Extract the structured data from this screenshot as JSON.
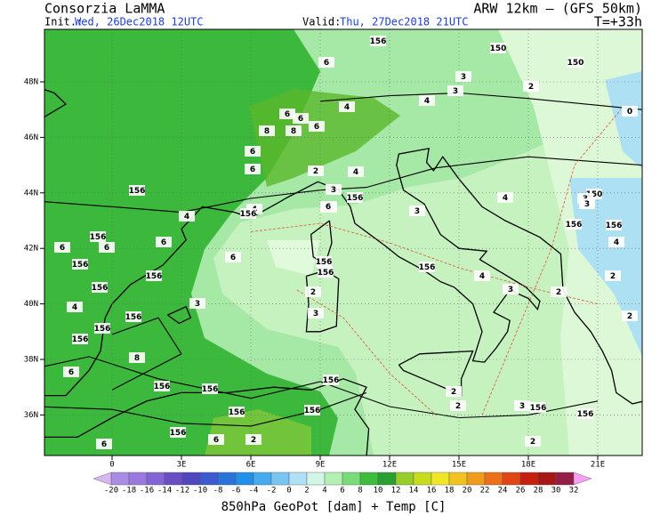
{
  "header": {
    "source": "Consorzia LaMMA",
    "model": "ARW 12km – (GFS 50km)",
    "init_label": "Init.:",
    "init": "Wed, 26Dec2018 12UTC",
    "valid_label": "Valid:",
    "valid": "Thu, 27Dec2018 21UTC",
    "step": "T=+33h"
  },
  "map": {
    "lat_labels": [
      "48N",
      "46N",
      "44N",
      "42N",
      "40N",
      "38N",
      "36N"
    ],
    "lon_labels": [
      "0",
      "3E",
      "6E",
      "9E",
      "12E",
      "15E",
      "18E",
      "21E"
    ],
    "contour_labels": [
      "156",
      "150",
      "150",
      "6",
      "3",
      "2",
      "4",
      "3",
      "4",
      "6",
      "6",
      "8",
      "6",
      "6",
      "6",
      "4",
      "4",
      "3",
      "2",
      "156",
      "156",
      "4",
      "156",
      "156",
      "6",
      "6",
      "6",
      "156",
      "156",
      "156",
      "6",
      "6",
      "3",
      "2",
      "3",
      "156",
      "156",
      "3",
      "4",
      "156",
      "156",
      "2",
      "3",
      "156",
      "4",
      "150",
      "150",
      "156",
      "8",
      "156",
      "156",
      "156",
      "156",
      "156",
      "156",
      "6",
      "6",
      "156",
      "156",
      "2",
      "3",
      "2",
      "156",
      "2",
      "2",
      "2",
      "2",
      "3",
      "4",
      "3",
      "2",
      "0",
      "4",
      "6",
      "8",
      "156"
    ]
  },
  "colorbar": {
    "labels": [
      -20,
      -18,
      -16,
      -14,
      -12,
      -10,
      -8,
      -6,
      -4,
      -2,
      0,
      2,
      4,
      6,
      8,
      10,
      12,
      14,
      16,
      18,
      20,
      22,
      24,
      26,
      28,
      30,
      32
    ],
    "colors": [
      "#a88ce6",
      "#9a78e0",
      "#8264d6",
      "#6a4ec8",
      "#5046c0",
      "#3c5ad2",
      "#2a72dc",
      "#2090e8",
      "#46aaf0",
      "#78c4f2",
      "#aee0f6",
      "#d2f5e6",
      "#b4efb4",
      "#78dc78",
      "#3cbe3c",
      "#28a032",
      "#96cd28",
      "#c8dc1e",
      "#f0e628",
      "#f0c31e",
      "#f09a1e",
      "#ec701a",
      "#e04614",
      "#c8200f",
      "#a81616",
      "#961e46",
      "#b4148c",
      "#d21eb4"
    ],
    "end_colors": [
      "#d8b4f0",
      "#f5a0f0"
    ],
    "caption": "850hPa GeoPot [dam] + Temp [C]"
  }
}
